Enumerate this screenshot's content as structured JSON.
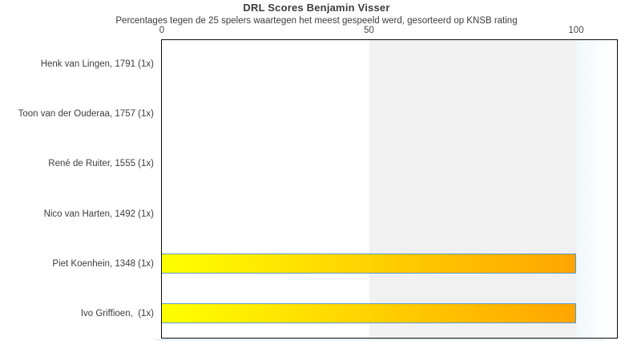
{
  "chart_data": {
    "type": "bar",
    "orientation": "horizontal",
    "title": "DRL Scores Benjamin Visser",
    "subtitle": "Percentages tegen de 25 spelers waartegen het meest gespeeld werd, gesorteerd op KNSB rating",
    "categories": [
      "Henk van Lingen, 1791 (1x)",
      "Toon van der Ouderaa, 1757 (1x)",
      "René de Ruiter, 1555 (1x)",
      "Nico van Harten, 1492 (1x)",
      "Piet Koenhein, 1348 (1x)",
      "Ivo Griffioen,  (1x)"
    ],
    "values": [
      0,
      0,
      0,
      0,
      100,
      100
    ],
    "x_ticks": [
      0,
      50,
      100
    ],
    "xlim": [
      0,
      110
    ],
    "x_axis_position": "top",
    "grid": false,
    "legend": false,
    "shaded_band": {
      "from": 50,
      "to": 100,
      "color": "#f1f1f1"
    },
    "bar_style": {
      "gradient_start": "#ffff00",
      "gradient_end": "#ffa500",
      "border_color": "#5b9bd5"
    }
  }
}
